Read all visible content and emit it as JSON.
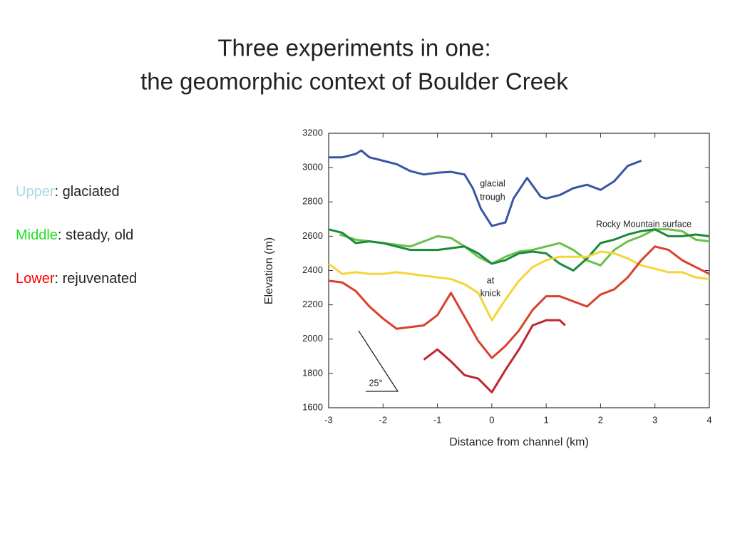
{
  "slide": {
    "title": [
      "Three experiments in one:",
      "the geomorphic context of Boulder Creek"
    ],
    "bullets": [
      {
        "term": "Upper",
        "color": "#a9d6e5",
        "text": ": glaciated"
      },
      {
        "term": "Middle",
        "color": "#22e022",
        "text": ": steady, old"
      },
      {
        "term": "Lower",
        "color": "#ff0000",
        "text": ": rejuvenated"
      }
    ]
  },
  "chart_data": {
    "type": "line",
    "xlabel": "Distance from channel (km)",
    "ylabel": "Elevation (m)",
    "xlim": [
      -3,
      4
    ],
    "xticks": [
      -3,
      -2,
      -1,
      0,
      1,
      2,
      3,
      4
    ],
    "ylim": [
      1600,
      3200
    ],
    "yticks": [
      1600,
      1800,
      2000,
      2200,
      2400,
      2600,
      2800,
      3000,
      3200
    ],
    "annotations": [
      "glacial",
      "trough",
      "Rocky Mountain surface",
      "at",
      "knick",
      "25°"
    ],
    "series": [
      {
        "color": "#3a55a4",
        "x": [
          -3,
          -2.75,
          -2.5,
          -2.4,
          -2.25,
          -2,
          -1.75,
          -1.5,
          -1.25,
          -1,
          -0.75,
          -0.5,
          -0.35,
          -0.2,
          0,
          0.25,
          0.4,
          0.65,
          0.9,
          1,
          1.25,
          1.5,
          1.75,
          2,
          2.25,
          2.5,
          2.75
        ],
        "values": [
          3060,
          3060,
          3080,
          3100,
          3060,
          3040,
          3020,
          2980,
          2960,
          2970,
          2975,
          2960,
          2880,
          2760,
          2660,
          2680,
          2820,
          2940,
          2830,
          2820,
          2840,
          2880,
          2900,
          2870,
          2920,
          3010,
          3040
        ]
      },
      {
        "color": "#6cc04a",
        "x": [
          -2.8,
          -2.5,
          -2,
          -1.5,
          -1.25,
          -1,
          -0.75,
          -0.5,
          -0.25,
          0,
          0.25,
          0.5,
          0.75,
          1,
          1.25,
          1.5,
          1.75,
          2,
          2.25,
          2.5,
          2.75,
          3,
          3.25,
          3.5,
          3.75,
          4
        ],
        "values": [
          2610,
          2580,
          2560,
          2540,
          2570,
          2600,
          2590,
          2540,
          2480,
          2440,
          2480,
          2510,
          2520,
          2540,
          2560,
          2520,
          2460,
          2430,
          2520,
          2570,
          2600,
          2640,
          2640,
          2630,
          2580,
          2570
        ]
      },
      {
        "color": "#1b8a3c",
        "x": [
          -3,
          -2.75,
          -2.5,
          -2.25,
          -2,
          -1.75,
          -1.5,
          -1.25,
          -1,
          -0.75,
          -0.5,
          -0.25,
          0,
          0.25,
          0.5,
          0.75,
          1,
          1.25,
          1.5,
          1.75,
          2,
          2.25,
          2.5,
          2.75,
          3,
          3.25,
          3.5,
          3.75,
          4
        ],
        "values": [
          2640,
          2620,
          2560,
          2570,
          2560,
          2540,
          2520,
          2520,
          2520,
          2530,
          2540,
          2500,
          2440,
          2460,
          2500,
          2510,
          2500,
          2440,
          2400,
          2470,
          2560,
          2580,
          2610,
          2630,
          2640,
          2600,
          2600,
          2610,
          2600
        ]
      },
      {
        "color": "#f5d53a",
        "x": [
          -3,
          -2.75,
          -2.5,
          -2.25,
          -2,
          -1.75,
          -1.5,
          -1.25,
          -1,
          -0.75,
          -0.5,
          -0.25,
          0,
          0.25,
          0.5,
          0.75,
          1,
          1.25,
          1.5,
          1.75,
          2,
          2.25,
          2.5,
          2.75,
          3,
          3.25,
          3.5,
          3.75,
          4
        ],
        "values": [
          2440,
          2380,
          2390,
          2380,
          2380,
          2390,
          2380,
          2370,
          2360,
          2350,
          2320,
          2270,
          2110,
          2230,
          2340,
          2420,
          2460,
          2480,
          2480,
          2480,
          2510,
          2500,
          2470,
          2430,
          2410,
          2390,
          2390,
          2360,
          2350
        ]
      },
      {
        "color": "#d9412b",
        "x": [
          -3,
          -2.75,
          -2.5,
          -2.25,
          -2,
          -1.75,
          -1.5,
          -1.25,
          -1,
          -0.75,
          -0.5,
          -0.25,
          0,
          0.25,
          0.5,
          0.75,
          1,
          1.25,
          1.5,
          1.75,
          2,
          2.25,
          2.5,
          2.75,
          3,
          3.25,
          3.5,
          3.75,
          4
        ],
        "values": [
          2340,
          2330,
          2280,
          2190,
          2120,
          2060,
          2070,
          2080,
          2140,
          2270,
          2130,
          1990,
          1890,
          1960,
          2050,
          2170,
          2250,
          2250,
          2220,
          2190,
          2260,
          2290,
          2360,
          2460,
          2540,
          2520,
          2460,
          2420,
          2380
        ]
      },
      {
        "color": "#bf2530",
        "x": [
          -1.25,
          -1,
          -0.75,
          -0.5,
          -0.25,
          0,
          0.25,
          0.5,
          0.75,
          1,
          1.25,
          1.35
        ],
        "values": [
          1880,
          1940,
          1870,
          1790,
          1770,
          1690,
          1820,
          1940,
          2080,
          2110,
          2110,
          2080
        ]
      }
    ]
  }
}
